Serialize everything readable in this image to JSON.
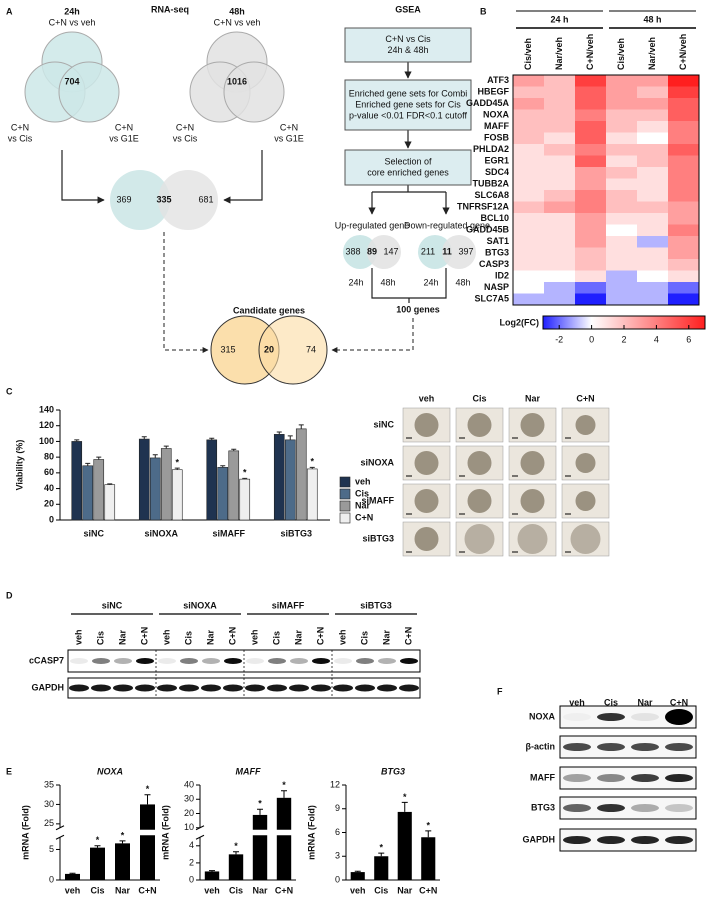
{
  "panels": [
    "A",
    "B",
    "C",
    "D",
    "E",
    "F"
  ],
  "rna_seq": {
    "title": "RNA-seq",
    "venns": [
      {
        "time": "24h",
        "top": "C+N vs veh",
        "left": [
          "C+N",
          "vs Cis"
        ],
        "right": [
          "C+N",
          "vs G1E"
        ],
        "center": 704,
        "color": "#cde7e7"
      },
      {
        "time": "48h",
        "top": "C+N vs veh",
        "left": [
          "C+N",
          "vs Cis"
        ],
        "right": [
          "C+N",
          "vs G1E"
        ],
        "center": 1016,
        "color": "#e2e2e2"
      }
    ],
    "overlap": {
      "left": 369,
      "center": 335,
      "right": 681
    }
  },
  "gsea": {
    "title": "GSEA",
    "boxes": [
      [
        "C+N vs Cis",
        "24h & 48h"
      ],
      [
        "Enriched gene sets for Combi",
        "Enriched gene sets for Cis",
        "p-value <0.01 FDR<0.1 cutoff"
      ],
      [
        "Selection of",
        "core enriched genes"
      ]
    ],
    "up": {
      "label": "Up-regulated gene",
      "left": 388,
      "center": 89,
      "right": 147
    },
    "down": {
      "label": "Down-regulated gene",
      "left": 211,
      "center": 11,
      "right": 397
    },
    "times": [
      "24h",
      "48h"
    ],
    "total": "100 genes"
  },
  "candidate": {
    "title": "Candidate genes",
    "left": 315,
    "center": 20,
    "right": 74
  },
  "chart_data": [
    {
      "type": "heatmap",
      "column_groups": [
        "24 h",
        "48 h"
      ],
      "columns": [
        "Cis/veh",
        "Nar/veh",
        "C+N/veh",
        "Cis/veh",
        "Nar/veh",
        "C+N/veh"
      ],
      "rows": [
        "ATF3",
        "HBEGF",
        "GADD45A",
        "NOXA",
        "MAFF",
        "FOSB",
        "PHLDA2",
        "EGR1",
        "SDC4",
        "TUBB2A",
        "SLC6A8",
        "TNFRSF12A",
        "BCL10",
        "GADD45B",
        "SAT1",
        "BTG3",
        "CASP3",
        "ID2",
        "NASP",
        "SLC7A5"
      ],
      "values": [
        [
          3,
          2,
          6,
          3,
          3,
          7
        ],
        [
          2,
          2,
          5,
          3,
          2,
          6
        ],
        [
          3,
          2,
          5,
          3,
          3,
          5
        ],
        [
          2,
          2,
          4,
          2,
          2,
          5
        ],
        [
          2,
          2,
          5,
          2,
          1,
          4
        ],
        [
          2,
          1,
          5,
          1,
          0,
          4
        ],
        [
          1,
          2,
          4,
          2,
          2,
          5
        ],
        [
          1,
          1,
          5,
          1,
          2,
          4
        ],
        [
          1,
          1,
          3,
          2,
          1,
          4
        ],
        [
          1,
          1,
          3,
          1,
          1,
          4
        ],
        [
          1,
          2,
          4,
          2,
          1,
          4
        ],
        [
          2,
          3,
          4,
          2,
          2,
          3
        ],
        [
          1,
          1,
          3,
          1,
          1,
          3
        ],
        [
          1,
          1,
          3,
          0,
          1,
          4
        ],
        [
          1,
          1,
          3,
          1,
          -1,
          3
        ],
        [
          1,
          1,
          2,
          1,
          1,
          3
        ],
        [
          1,
          1,
          2,
          1,
          1,
          2
        ],
        [
          0,
          0,
          1,
          -1,
          0,
          1
        ],
        [
          0,
          -1,
          -2,
          -1,
          -1,
          -2
        ],
        [
          -1,
          -1,
          -3,
          -1,
          -1,
          -3
        ]
      ],
      "colorbar_label": "Log2(FC)",
      "clim": [
        -3,
        7
      ],
      "cticks": [
        -2,
        0,
        2,
        4,
        6
      ],
      "colors": [
        "#1f1fff",
        "#ffffff",
        "#ff1f1f"
      ]
    },
    {
      "type": "bar",
      "ylabel": "Viability (%)",
      "categories": [
        "siNC",
        "siNOXA",
        "siMAFF",
        "siBTG3"
      ],
      "series": [
        {
          "name": "veh",
          "color": "#1f3350",
          "values": [
            100,
            103,
            102,
            109
          ],
          "errors": [
            2,
            3,
            2,
            3
          ],
          "significance": [
            null,
            null,
            null,
            null
          ]
        },
        {
          "name": "Cis",
          "color": "#4d6b89",
          "values": [
            69,
            79,
            67,
            102
          ],
          "errors": [
            3,
            4,
            2,
            5
          ],
          "significance": [
            null,
            null,
            null,
            null
          ]
        },
        {
          "name": "Nar",
          "color": "#9a9a9a",
          "values": [
            77,
            91,
            88,
            116
          ],
          "errors": [
            3,
            3,
            2,
            5
          ],
          "significance": [
            null,
            null,
            null,
            null
          ]
        },
        {
          "name": "C+N",
          "color": "#efefef",
          "values": [
            45,
            64,
            52,
            65
          ],
          "errors": [
            1,
            2,
            1,
            2
          ],
          "significance": [
            null,
            "*",
            "*",
            "*"
          ]
        }
      ],
      "ylim": [
        0,
        140
      ],
      "yticks": [
        0,
        20,
        40,
        60,
        80,
        100,
        120,
        140
      ]
    },
    {
      "type": "bar",
      "title": "NOXA",
      "ylabel": "mRNA (Fold)",
      "categories": [
        "veh",
        "Cis",
        "Nar",
        "C+N"
      ],
      "values": [
        1,
        5.3,
        6,
        30
      ],
      "errors": [
        0.1,
        0.3,
        0.4,
        2.5
      ],
      "color": "#000000",
      "significance": [
        null,
        "*",
        "*",
        "*"
      ],
      "ylim": [
        0,
        35
      ],
      "ybreak": [
        7,
        24
      ],
      "yticks": [
        0,
        5,
        25,
        30,
        35
      ]
    },
    {
      "type": "bar",
      "title": "MAFF",
      "ylabel": "mRNA (Fold)",
      "categories": [
        "veh",
        "Cis",
        "Nar",
        "C+N"
      ],
      "values": [
        1,
        3,
        19,
        31
      ],
      "errors": [
        0.1,
        0.3,
        4,
        5
      ],
      "color": "#000000",
      "significance": [
        null,
        "*",
        "*",
        "*"
      ],
      "ylim": [
        0,
        40
      ],
      "ybreak": [
        5,
        10
      ],
      "yticks": [
        0,
        2,
        4,
        10,
        20,
        30,
        40
      ]
    },
    {
      "type": "bar",
      "title": "BTG3",
      "ylabel": "mRNA (Fold)",
      "categories": [
        "veh",
        "Cis",
        "Nar",
        "C+N"
      ],
      "values": [
        1,
        3,
        8.6,
        5.4
      ],
      "errors": [
        0.1,
        0.4,
        1.2,
        0.8
      ],
      "color": "#000000",
      "significance": [
        null,
        "*",
        "*",
        "*"
      ],
      "ylim": [
        0,
        12
      ],
      "yticks": [
        0,
        3,
        6,
        9,
        12
      ]
    }
  ],
  "spheroids": {
    "columns": [
      "veh",
      "Cis",
      "Nar",
      "C+N"
    ],
    "rows": [
      "siNC",
      "siNOXA",
      "siMAFF",
      "siBTG3"
    ]
  },
  "blot_d": {
    "groups": [
      {
        "name": "siNC",
        "lanes": [
          "veh",
          "Cis",
          "Nar",
          "C+N"
        ]
      },
      {
        "name": "siNOXA",
        "lanes": [
          "veh",
          "Cis",
          "Nar",
          "C+N"
        ]
      },
      {
        "name": "siMAFF",
        "lanes": [
          "veh",
          "Cis",
          "Nar",
          "C+N"
        ]
      },
      {
        "name": "siBTG3",
        "lanes": [
          "veh",
          "Cis",
          "Nar",
          "C+N"
        ]
      }
    ],
    "rows": [
      "cCASP7",
      "GAPDH"
    ]
  },
  "blot_f": {
    "lanes": [
      "veh",
      "Cis",
      "Nar",
      "C+N"
    ],
    "rows": [
      "NOXA",
      "β-actin",
      "MAFF",
      "BTG3",
      "GAPDH"
    ]
  }
}
